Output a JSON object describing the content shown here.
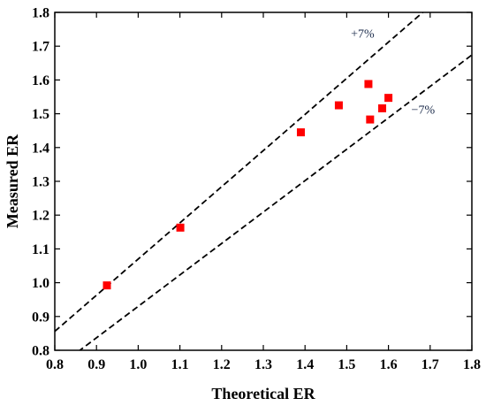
{
  "chart_data": {
    "type": "scatter",
    "title": "",
    "xlabel": "Theoretical ER",
    "ylabel": "Measured ER",
    "xlim": [
      0.8,
      1.8
    ],
    "ylim": [
      0.8,
      1.8
    ],
    "x_ticks": [
      "0.8",
      "0.9",
      "1.0",
      "1.1",
      "1.2",
      "1.3",
      "1.4",
      "1.5",
      "1.6",
      "1.7",
      "1.8"
    ],
    "y_ticks": [
      "0.8",
      "0.9",
      "1.0",
      "1.1",
      "1.2",
      "1.3",
      "1.4",
      "1.5",
      "1.6",
      "1.7",
      "1.8"
    ],
    "grid": false,
    "series": [
      {
        "marker": "square",
        "color": "#ff0000",
        "points": [
          {
            "x": 0.925,
            "y": 0.992
          },
          {
            "x": 1.101,
            "y": 1.163
          },
          {
            "x": 1.39,
            "y": 1.445
          },
          {
            "x": 1.481,
            "y": 1.525
          },
          {
            "x": 1.552,
            "y": 1.588
          },
          {
            "x": 1.556,
            "y": 1.483
          },
          {
            "x": 1.585,
            "y": 1.516
          },
          {
            "x": 1.6,
            "y": 1.547
          }
        ]
      }
    ],
    "reference_lines": [
      {
        "label": "+7%",
        "slope": 1.07,
        "style": "dashed",
        "color": "#000000"
      },
      {
        "label": "−7%",
        "slope": 0.93,
        "style": "dashed",
        "color": "#000000"
      }
    ],
    "annotations": [
      "+7%",
      "−7%"
    ]
  }
}
